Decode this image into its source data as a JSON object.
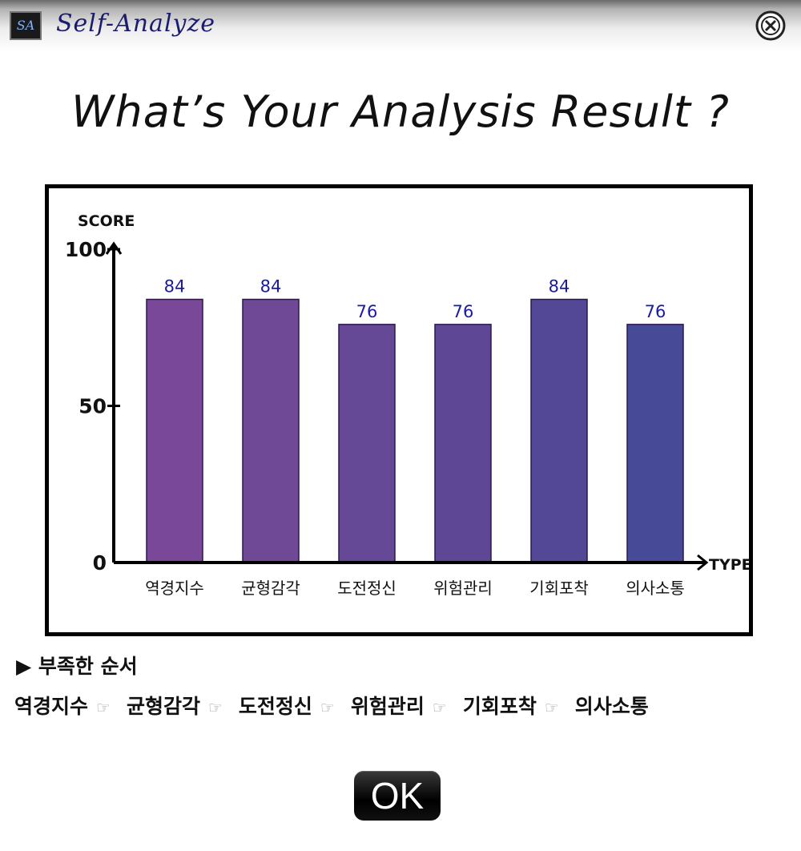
{
  "app": {
    "logo_text": "SA",
    "title": "Self-Analyze"
  },
  "headline": "What’s Your Analysis Result ?",
  "chart_data": {
    "type": "bar",
    "categories": [
      "역경지수",
      "균형감각",
      "도전정신",
      "위험관리",
      "기회포착",
      "의사소통"
    ],
    "values": [
      84,
      84,
      76,
      76,
      84,
      76
    ],
    "title": "",
    "xlabel": "TYPE",
    "ylabel": "SCORE",
    "ylim": [
      0,
      100
    ],
    "yticks": [
      0,
      50,
      100
    ],
    "bar_colors": [
      "#7a4899",
      "#6f4896",
      "#654896",
      "#5e4895",
      "#534896",
      "#474a96"
    ],
    "bar_border": "#2d1850",
    "value_label_color": "#1a1aa6",
    "grid": false,
    "legend": "none"
  },
  "deficit": {
    "title": "▶ 부족한 순서",
    "separator": "☞",
    "order": [
      "역경지수",
      "균형감각",
      "도전정신",
      "위험관리",
      "기회포착",
      "의사소통"
    ]
  },
  "ok_button": {
    "label": "OK"
  },
  "icons": {
    "close": "close-circle-icon",
    "logo": "app-logo-icon"
  }
}
